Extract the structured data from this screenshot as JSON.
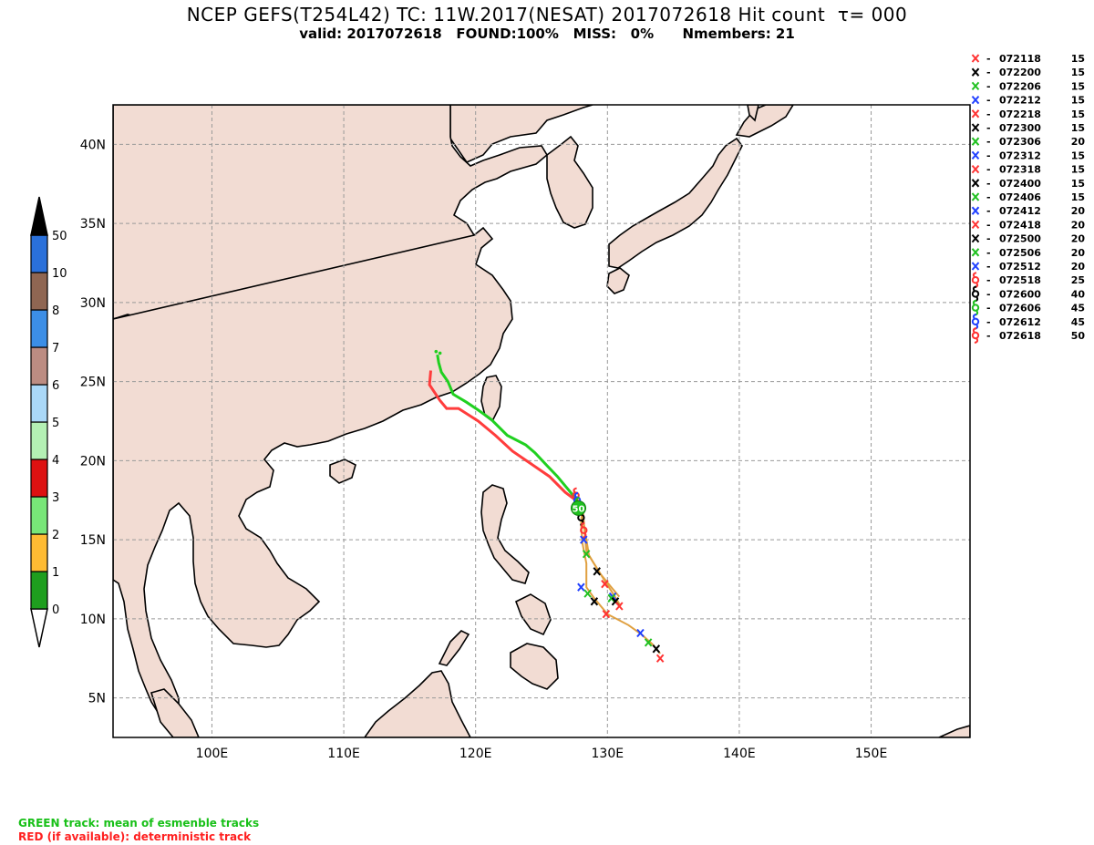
{
  "header": {
    "title": "NCEP GEFS(T254L42) TC: 11W.2017(NESAT) 2017072618 Hit count  τ= 000",
    "subtitle": "valid: 2017072618   FOUND:100%   MISS:   0%      Nmembers: 21"
  },
  "map": {
    "lon_range": [
      92.5,
      157.5
    ],
    "lat_range": [
      2.5,
      42.5
    ],
    "lon_ticks": [
      "100E",
      "110E",
      "120E",
      "130E",
      "140E",
      "150E"
    ],
    "lat_ticks": [
      "5N",
      "10N",
      "15N",
      "20N",
      "25N",
      "30N",
      "35N",
      "40N"
    ],
    "land_color": "#f2dcd3",
    "grid": true
  },
  "colorbar": {
    "labels": [
      "0",
      "1",
      "2",
      "3",
      "4",
      "5",
      "6",
      "7",
      "8",
      "10",
      "50"
    ],
    "colors": [
      "#1e9e1e",
      "#ffbb33",
      "#78e678",
      "#dd1111",
      "#b4f0b4",
      "#aad8f8",
      "#bc8c82",
      "#3c8ee6",
      "#8f6652",
      "#2a70da"
    ]
  },
  "legend": [
    {
      "symbol": "x",
      "label": "072118",
      "count": "15",
      "color": "#ff3333"
    },
    {
      "symbol": "x",
      "label": "072200",
      "count": "15",
      "color": "#000000"
    },
    {
      "symbol": "x",
      "label": "072206",
      "count": "15",
      "color": "#20c020"
    },
    {
      "symbol": "x",
      "label": "072212",
      "count": "15",
      "color": "#2040ff"
    },
    {
      "symbol": "x",
      "label": "072218",
      "count": "15",
      "color": "#ff3333"
    },
    {
      "symbol": "x",
      "label": "072300",
      "count": "15",
      "color": "#000000"
    },
    {
      "symbol": "x",
      "label": "072306",
      "count": "20",
      "color": "#20c020"
    },
    {
      "symbol": "x",
      "label": "072312",
      "count": "15",
      "color": "#2040ff"
    },
    {
      "symbol": "x",
      "label": "072318",
      "count": "15",
      "color": "#ff3333"
    },
    {
      "symbol": "x",
      "label": "072400",
      "count": "15",
      "color": "#000000"
    },
    {
      "symbol": "x",
      "label": "072406",
      "count": "15",
      "color": "#20c020"
    },
    {
      "symbol": "x",
      "label": "072412",
      "count": "20",
      "color": "#2040ff"
    },
    {
      "symbol": "x",
      "label": "072418",
      "count": "20",
      "color": "#ff3333"
    },
    {
      "symbol": "x",
      "label": "072500",
      "count": "20",
      "color": "#000000"
    },
    {
      "symbol": "x",
      "label": "072506",
      "count": "20",
      "color": "#20c020"
    },
    {
      "symbol": "x",
      "label": "072512",
      "count": "20",
      "color": "#2040ff"
    },
    {
      "symbol": "s",
      "label": "072518",
      "count": "25",
      "color": "#ff3333"
    },
    {
      "symbol": "s",
      "label": "072600",
      "count": "40",
      "color": "#000000"
    },
    {
      "symbol": "s",
      "label": "072606",
      "count": "45",
      "color": "#20c020"
    },
    {
      "symbol": "s",
      "label": "072612",
      "count": "45",
      "color": "#2040ff"
    },
    {
      "symbol": "s",
      "label": "072618",
      "count": "50",
      "color": "#ff3333"
    }
  ],
  "tracks": {
    "mean_color": "#20d020",
    "det_color": "#ff3c3c",
    "mean": [
      [
        117.1,
        26.7
      ],
      [
        117.2,
        26.2
      ],
      [
        117.4,
        25.6
      ],
      [
        117.9,
        25.0
      ],
      [
        118.3,
        24.2
      ],
      [
        119.3,
        23.7
      ],
      [
        120.2,
        23.2
      ],
      [
        121.2,
        22.6
      ],
      [
        122.4,
        21.6
      ],
      [
        123.8,
        21.0
      ],
      [
        124.5,
        20.5
      ],
      [
        125.4,
        19.7
      ],
      [
        126.2,
        19.0
      ],
      [
        126.8,
        18.4
      ],
      [
        127.4,
        17.8
      ],
      [
        127.9,
        17.2
      ]
    ],
    "det": [
      [
        116.6,
        25.7
      ],
      [
        116.5,
        24.8
      ],
      [
        117.3,
        23.8
      ],
      [
        117.8,
        23.3
      ],
      [
        118.7,
        23.3
      ],
      [
        120.2,
        22.5
      ],
      [
        121.5,
        21.6
      ],
      [
        122.8,
        20.6
      ],
      [
        124.2,
        19.8
      ],
      [
        125.6,
        19.0
      ],
      [
        126.8,
        18.0
      ],
      [
        127.6,
        17.5
      ]
    ],
    "ensemble_color": "#e0a040",
    "ensemble": [
      [
        [
          128.1,
          17.2
        ],
        [
          128.2,
          16.2
        ],
        [
          128.3,
          15.2
        ],
        [
          128.4,
          14.3
        ],
        [
          128.9,
          13.6
        ],
        [
          129.5,
          12.8
        ],
        [
          130.3,
          12.0
        ],
        [
          130.9,
          11.4
        ]
      ],
      [
        [
          128.1,
          17.2
        ],
        [
          128.2,
          16.0
        ],
        [
          128.4,
          15.0
        ],
        [
          128.6,
          14.0
        ],
        [
          129.2,
          13.2
        ],
        [
          129.8,
          12.4
        ],
        [
          130.5,
          11.5
        ],
        [
          131.0,
          10.8
        ]
      ],
      [
        [
          128.1,
          17.2
        ],
        [
          128.0,
          16.0
        ],
        [
          128.1,
          14.8
        ],
        [
          128.4,
          13.5
        ],
        [
          128.4,
          12.0
        ],
        [
          129.0,
          11.3
        ],
        [
          130.0,
          10.3
        ],
        [
          131.6,
          9.6
        ],
        [
          132.6,
          9.0
        ],
        [
          133.4,
          8.4
        ],
        [
          134.0,
          7.8
        ]
      ]
    ]
  },
  "fixes": [
    {
      "t": "072618",
      "type": "s",
      "color": "#ff3333",
      "lon": 127.6,
      "lat": 17.8
    },
    {
      "t": "072612",
      "type": "s",
      "color": "#2040ff",
      "lon": 127.7,
      "lat": 17.5
    },
    {
      "t": "072606",
      "type": "s",
      "color": "#20c020",
      "lon": 127.8,
      "lat": 17.2
    },
    {
      "t": "072600",
      "type": "s",
      "color": "#000000",
      "lon": 128.0,
      "lat": 16.4
    },
    {
      "t": "072518",
      "type": "s",
      "color": "#ff3333",
      "lon": 128.2,
      "lat": 15.6
    },
    {
      "t": "072512",
      "type": "x",
      "color": "#2040ff",
      "lon": 128.2,
      "lat": 15.0
    },
    {
      "t": "072506",
      "type": "x",
      "color": "#20c020",
      "lon": 128.4,
      "lat": 14.1
    },
    {
      "t": "072500",
      "type": "x",
      "color": "#000000",
      "lon": 129.2,
      "lat": 13.0
    },
    {
      "t": "072418",
      "type": "x",
      "color": "#ff3333",
      "lon": 129.8,
      "lat": 12.2
    },
    {
      "t": "072412",
      "type": "x",
      "color": "#2040ff",
      "lon": 130.4,
      "lat": 11.4
    },
    {
      "t": "072406",
      "type": "x",
      "color": "#20c020",
      "lon": 130.3,
      "lat": 11.3
    },
    {
      "t": "072400",
      "type": "x",
      "color": "#000000",
      "lon": 130.6,
      "lat": 11.1
    },
    {
      "t": "072318",
      "type": "x",
      "color": "#ff3333",
      "lon": 130.9,
      "lat": 10.8
    },
    {
      "t": "072312",
      "type": "x",
      "color": "#2040ff",
      "lon": 128.0,
      "lat": 12.0
    },
    {
      "t": "072306",
      "type": "x",
      "color": "#20c020",
      "lon": 128.5,
      "lat": 11.6
    },
    {
      "t": "072300",
      "type": "x",
      "color": "#000000",
      "lon": 129.0,
      "lat": 11.1
    },
    {
      "t": "072218",
      "type": "x",
      "color": "#ff3333",
      "lon": 129.9,
      "lat": 10.3
    },
    {
      "t": "072212",
      "type": "x",
      "color": "#2040ff",
      "lon": 132.5,
      "lat": 9.1
    },
    {
      "t": "072206",
      "type": "x",
      "color": "#20c020",
      "lon": 133.1,
      "lat": 8.5
    },
    {
      "t": "072200",
      "type": "x",
      "color": "#000000",
      "lon": 133.7,
      "lat": 8.1
    },
    {
      "t": "072118",
      "type": "x",
      "color": "#ff3333",
      "lon": 134.0,
      "lat": 7.5
    }
  ],
  "hit_marker": {
    "label": "50",
    "lon": 127.8,
    "lat": 17.0,
    "color": "#20c020"
  },
  "footer": {
    "green_note": "GREEN track: mean of esmenble tracks",
    "red_note": "RED (if available): deterministic track"
  }
}
